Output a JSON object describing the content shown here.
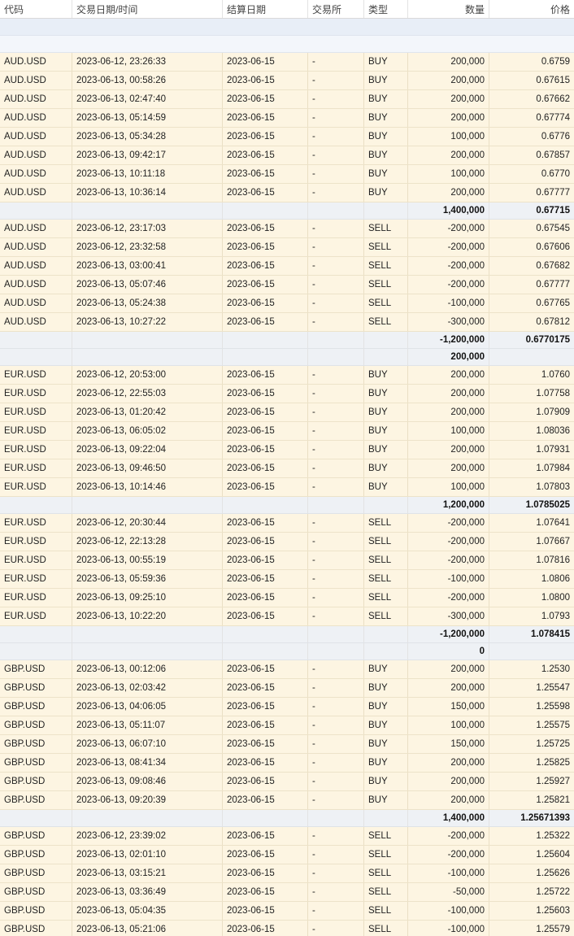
{
  "columns": {
    "code": "代码",
    "datetime": "交易日期/时间",
    "settle_date": "结算日期",
    "exchange": "交易所",
    "type": "类型",
    "quantity": "数量",
    "price": "价格"
  },
  "rows": [
    {
      "kind": "blank"
    },
    {
      "kind": "blank",
      "alt": true
    },
    {
      "kind": "trade",
      "code": "AUD.USD",
      "datetime": "2023-06-12, 23:26:33",
      "settle_date": "2023-06-15",
      "exchange": "-",
      "type": "BUY",
      "quantity": "200,000",
      "price": "0.6759"
    },
    {
      "kind": "trade",
      "code": "AUD.USD",
      "datetime": "2023-06-13, 00:58:26",
      "settle_date": "2023-06-15",
      "exchange": "-",
      "type": "BUY",
      "quantity": "200,000",
      "price": "0.67615"
    },
    {
      "kind": "trade",
      "code": "AUD.USD",
      "datetime": "2023-06-13, 02:47:40",
      "settle_date": "2023-06-15",
      "exchange": "-",
      "type": "BUY",
      "quantity": "200,000",
      "price": "0.67662"
    },
    {
      "kind": "trade",
      "code": "AUD.USD",
      "datetime": "2023-06-13, 05:14:59",
      "settle_date": "2023-06-15",
      "exchange": "-",
      "type": "BUY",
      "quantity": "200,000",
      "price": "0.67774"
    },
    {
      "kind": "trade",
      "code": "AUD.USD",
      "datetime": "2023-06-13, 05:34:28",
      "settle_date": "2023-06-15",
      "exchange": "-",
      "type": "BUY",
      "quantity": "100,000",
      "price": "0.6776"
    },
    {
      "kind": "trade",
      "code": "AUD.USD",
      "datetime": "2023-06-13, 09:42:17",
      "settle_date": "2023-06-15",
      "exchange": "-",
      "type": "BUY",
      "quantity": "200,000",
      "price": "0.67857"
    },
    {
      "kind": "trade",
      "code": "AUD.USD",
      "datetime": "2023-06-13, 10:11:18",
      "settle_date": "2023-06-15",
      "exchange": "-",
      "type": "BUY",
      "quantity": "100,000",
      "price": "0.6770"
    },
    {
      "kind": "trade",
      "code": "AUD.USD",
      "datetime": "2023-06-13, 10:36:14",
      "settle_date": "2023-06-15",
      "exchange": "-",
      "type": "BUY",
      "quantity": "200,000",
      "price": "0.67777"
    },
    {
      "kind": "summary",
      "quantity": "1,400,000",
      "price": "0.67715"
    },
    {
      "kind": "trade",
      "code": "AUD.USD",
      "datetime": "2023-06-12, 23:17:03",
      "settle_date": "2023-06-15",
      "exchange": "-",
      "type": "SELL",
      "quantity": "-200,000",
      "price": "0.67545"
    },
    {
      "kind": "trade",
      "code": "AUD.USD",
      "datetime": "2023-06-12, 23:32:58",
      "settle_date": "2023-06-15",
      "exchange": "-",
      "type": "SELL",
      "quantity": "-200,000",
      "price": "0.67606"
    },
    {
      "kind": "trade",
      "code": "AUD.USD",
      "datetime": "2023-06-13, 03:00:41",
      "settle_date": "2023-06-15",
      "exchange": "-",
      "type": "SELL",
      "quantity": "-200,000",
      "price": "0.67682"
    },
    {
      "kind": "trade",
      "code": "AUD.USD",
      "datetime": "2023-06-13, 05:07:46",
      "settle_date": "2023-06-15",
      "exchange": "-",
      "type": "SELL",
      "quantity": "-200,000",
      "price": "0.67777"
    },
    {
      "kind": "trade",
      "code": "AUD.USD",
      "datetime": "2023-06-13, 05:24:38",
      "settle_date": "2023-06-15",
      "exchange": "-",
      "type": "SELL",
      "quantity": "-100,000",
      "price": "0.67765"
    },
    {
      "kind": "trade",
      "code": "AUD.USD",
      "datetime": "2023-06-13, 10:27:22",
      "settle_date": "2023-06-15",
      "exchange": "-",
      "type": "SELL",
      "quantity": "-300,000",
      "price": "0.67812"
    },
    {
      "kind": "summary",
      "quantity": "-1,200,000",
      "price": "0.6770175"
    },
    {
      "kind": "summary",
      "quantity": "200,000",
      "price": ""
    },
    {
      "kind": "trade",
      "code": "EUR.USD",
      "datetime": "2023-06-12, 20:53:00",
      "settle_date": "2023-06-15",
      "exchange": "-",
      "type": "BUY",
      "quantity": "200,000",
      "price": "1.0760"
    },
    {
      "kind": "trade",
      "code": "EUR.USD",
      "datetime": "2023-06-12, 22:55:03",
      "settle_date": "2023-06-15",
      "exchange": "-",
      "type": "BUY",
      "quantity": "200,000",
      "price": "1.07758"
    },
    {
      "kind": "trade",
      "code": "EUR.USD",
      "datetime": "2023-06-13, 01:20:42",
      "settle_date": "2023-06-15",
      "exchange": "-",
      "type": "BUY",
      "quantity": "200,000",
      "price": "1.07909"
    },
    {
      "kind": "trade",
      "code": "EUR.USD",
      "datetime": "2023-06-13, 06:05:02",
      "settle_date": "2023-06-15",
      "exchange": "-",
      "type": "BUY",
      "quantity": "100,000",
      "price": "1.08036"
    },
    {
      "kind": "trade",
      "code": "EUR.USD",
      "datetime": "2023-06-13, 09:22:04",
      "settle_date": "2023-06-15",
      "exchange": "-",
      "type": "BUY",
      "quantity": "200,000",
      "price": "1.07931"
    },
    {
      "kind": "trade",
      "code": "EUR.USD",
      "datetime": "2023-06-13, 09:46:50",
      "settle_date": "2023-06-15",
      "exchange": "-",
      "type": "BUY",
      "quantity": "200,000",
      "price": "1.07984"
    },
    {
      "kind": "trade",
      "code": "EUR.USD",
      "datetime": "2023-06-13, 10:14:46",
      "settle_date": "2023-06-15",
      "exchange": "-",
      "type": "BUY",
      "quantity": "100,000",
      "price": "1.07803"
    },
    {
      "kind": "summary",
      "quantity": "1,200,000",
      "price": "1.0785025"
    },
    {
      "kind": "trade",
      "code": "EUR.USD",
      "datetime": "2023-06-12, 20:30:44",
      "settle_date": "2023-06-15",
      "exchange": "-",
      "type": "SELL",
      "quantity": "-200,000",
      "price": "1.07641"
    },
    {
      "kind": "trade",
      "code": "EUR.USD",
      "datetime": "2023-06-12, 22:13:28",
      "settle_date": "2023-06-15",
      "exchange": "-",
      "type": "SELL",
      "quantity": "-200,000",
      "price": "1.07667"
    },
    {
      "kind": "trade",
      "code": "EUR.USD",
      "datetime": "2023-06-13, 00:55:19",
      "settle_date": "2023-06-15",
      "exchange": "-",
      "type": "SELL",
      "quantity": "-200,000",
      "price": "1.07816"
    },
    {
      "kind": "trade",
      "code": "EUR.USD",
      "datetime": "2023-06-13, 05:59:36",
      "settle_date": "2023-06-15",
      "exchange": "-",
      "type": "SELL",
      "quantity": "-100,000",
      "price": "1.0806"
    },
    {
      "kind": "trade",
      "code": "EUR.USD",
      "datetime": "2023-06-13, 09:25:10",
      "settle_date": "2023-06-15",
      "exchange": "-",
      "type": "SELL",
      "quantity": "-200,000",
      "price": "1.0800"
    },
    {
      "kind": "trade",
      "code": "EUR.USD",
      "datetime": "2023-06-13, 10:22:20",
      "settle_date": "2023-06-15",
      "exchange": "-",
      "type": "SELL",
      "quantity": "-300,000",
      "price": "1.0793"
    },
    {
      "kind": "summary",
      "quantity": "-1,200,000",
      "price": "1.078415"
    },
    {
      "kind": "summary",
      "quantity": "0",
      "price": ""
    },
    {
      "kind": "trade",
      "code": "GBP.USD",
      "datetime": "2023-06-13, 00:12:06",
      "settle_date": "2023-06-15",
      "exchange": "-",
      "type": "BUY",
      "quantity": "200,000",
      "price": "1.2530"
    },
    {
      "kind": "trade",
      "code": "GBP.USD",
      "datetime": "2023-06-13, 02:03:42",
      "settle_date": "2023-06-15",
      "exchange": "-",
      "type": "BUY",
      "quantity": "200,000",
      "price": "1.25547"
    },
    {
      "kind": "trade",
      "code": "GBP.USD",
      "datetime": "2023-06-13, 04:06:05",
      "settle_date": "2023-06-15",
      "exchange": "-",
      "type": "BUY",
      "quantity": "150,000",
      "price": "1.25598"
    },
    {
      "kind": "trade",
      "code": "GBP.USD",
      "datetime": "2023-06-13, 05:11:07",
      "settle_date": "2023-06-15",
      "exchange": "-",
      "type": "BUY",
      "quantity": "100,000",
      "price": "1.25575"
    },
    {
      "kind": "trade",
      "code": "GBP.USD",
      "datetime": "2023-06-13, 06:07:10",
      "settle_date": "2023-06-15",
      "exchange": "-",
      "type": "BUY",
      "quantity": "150,000",
      "price": "1.25725"
    },
    {
      "kind": "trade",
      "code": "GBP.USD",
      "datetime": "2023-06-13, 08:41:34",
      "settle_date": "2023-06-15",
      "exchange": "-",
      "type": "BUY",
      "quantity": "200,000",
      "price": "1.25825"
    },
    {
      "kind": "trade",
      "code": "GBP.USD",
      "datetime": "2023-06-13, 09:08:46",
      "settle_date": "2023-06-15",
      "exchange": "-",
      "type": "BUY",
      "quantity": "200,000",
      "price": "1.25927"
    },
    {
      "kind": "trade",
      "code": "GBP.USD",
      "datetime": "2023-06-13, 09:20:39",
      "settle_date": "2023-06-15",
      "exchange": "-",
      "type": "BUY",
      "quantity": "200,000",
      "price": "1.25821"
    },
    {
      "kind": "summary",
      "quantity": "1,400,000",
      "price": "1.25671393"
    },
    {
      "kind": "trade",
      "code": "GBP.USD",
      "datetime": "2023-06-12, 23:39:02",
      "settle_date": "2023-06-15",
      "exchange": "-",
      "type": "SELL",
      "quantity": "-200,000",
      "price": "1.25322"
    },
    {
      "kind": "trade",
      "code": "GBP.USD",
      "datetime": "2023-06-13, 02:01:10",
      "settle_date": "2023-06-15",
      "exchange": "-",
      "type": "SELL",
      "quantity": "-200,000",
      "price": "1.25604"
    },
    {
      "kind": "trade",
      "code": "GBP.USD",
      "datetime": "2023-06-13, 03:15:21",
      "settle_date": "2023-06-15",
      "exchange": "-",
      "type": "SELL",
      "quantity": "-100,000",
      "price": "1.25626"
    },
    {
      "kind": "trade",
      "code": "GBP.USD",
      "datetime": "2023-06-13, 03:36:49",
      "settle_date": "2023-06-15",
      "exchange": "-",
      "type": "SELL",
      "quantity": "-50,000",
      "price": "1.25722"
    },
    {
      "kind": "trade",
      "code": "GBP.USD",
      "datetime": "2023-06-13, 05:04:35",
      "settle_date": "2023-06-15",
      "exchange": "-",
      "type": "SELL",
      "quantity": "-100,000",
      "price": "1.25603"
    },
    {
      "kind": "trade",
      "code": "GBP.USD",
      "datetime": "2023-06-13, 05:21:06",
      "settle_date": "2023-06-15",
      "exchange": "-",
      "type": "SELL",
      "quantity": "-100,000",
      "price": "1.25579"
    }
  ]
}
